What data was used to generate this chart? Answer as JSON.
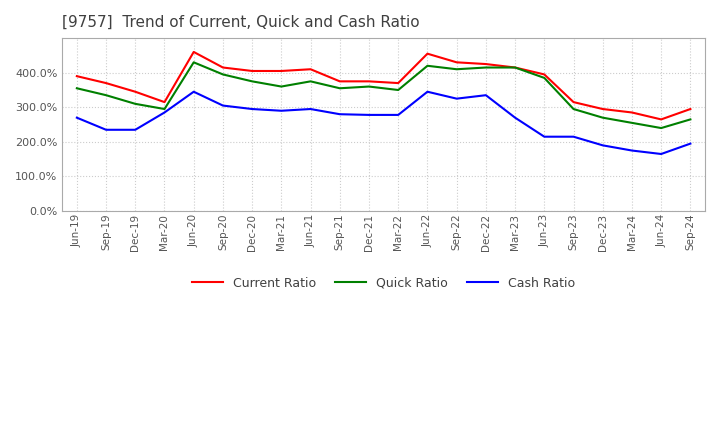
{
  "title": "[9757]  Trend of Current, Quick and Cash Ratio",
  "title_color": "#404040",
  "background_color": "#ffffff",
  "plot_background_color": "#ffffff",
  "grid_color": "#cccccc",
  "x_labels": [
    "Jun-19",
    "Sep-19",
    "Dec-19",
    "Mar-20",
    "Jun-20",
    "Sep-20",
    "Dec-20",
    "Mar-21",
    "Jun-21",
    "Sep-21",
    "Dec-21",
    "Mar-22",
    "Jun-22",
    "Sep-22",
    "Dec-22",
    "Mar-23",
    "Jun-23",
    "Sep-23",
    "Dec-23",
    "Mar-24",
    "Jun-24",
    "Sep-24"
  ],
  "current_ratio": [
    390,
    370,
    345,
    315,
    460,
    415,
    405,
    405,
    410,
    375,
    375,
    370,
    455,
    430,
    425,
    415,
    395,
    315,
    295,
    285,
    265,
    295
  ],
  "quick_ratio": [
    355,
    335,
    310,
    295,
    430,
    395,
    375,
    360,
    375,
    355,
    360,
    350,
    420,
    410,
    415,
    415,
    385,
    295,
    270,
    255,
    240,
    265
  ],
  "cash_ratio": [
    270,
    235,
    235,
    285,
    345,
    305,
    295,
    290,
    295,
    280,
    278,
    278,
    345,
    325,
    335,
    270,
    215,
    215,
    190,
    175,
    165,
    195
  ],
  "current_color": "#ff0000",
  "quick_color": "#008000",
  "cash_color": "#0000ff",
  "ylim": [
    0,
    500
  ],
  "yticks": [
    0,
    100,
    200,
    300,
    400
  ],
  "legend_labels": [
    "Current Ratio",
    "Quick Ratio",
    "Cash Ratio"
  ]
}
